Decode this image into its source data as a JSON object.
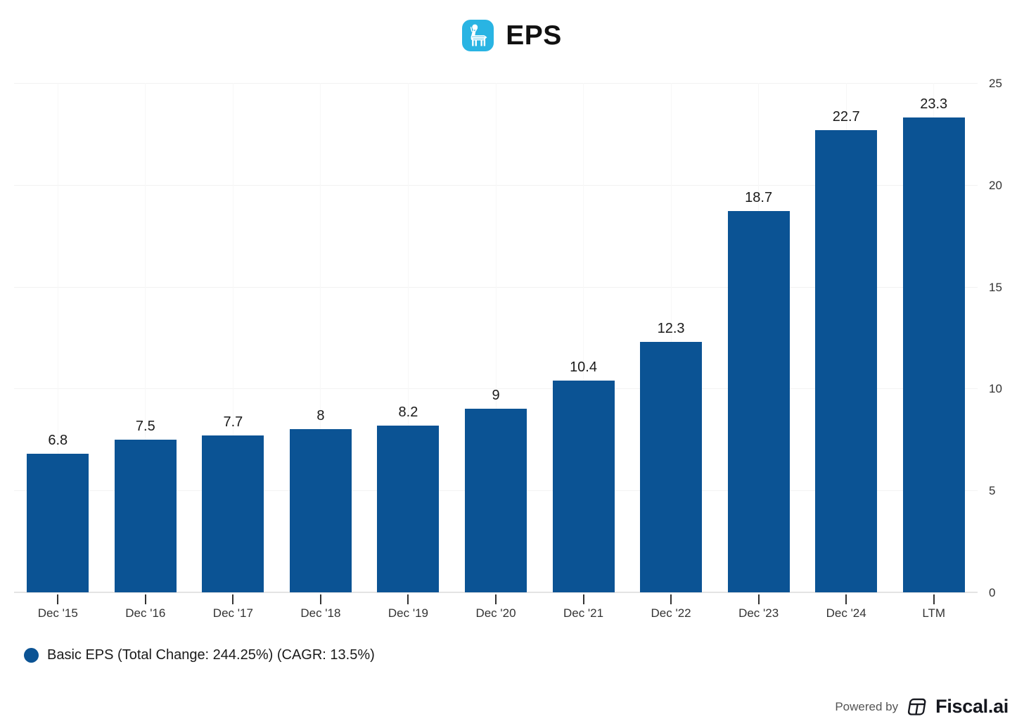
{
  "header": {
    "title": "EPS",
    "icon": "deer-logo-icon"
  },
  "chart_data": {
    "type": "bar",
    "title": "EPS",
    "categories": [
      "Dec '15",
      "Dec '16",
      "Dec '17",
      "Dec '18",
      "Dec '19",
      "Dec '20",
      "Dec '21",
      "Dec '22",
      "Dec '23",
      "Dec '24",
      "LTM"
    ],
    "series": [
      {
        "name": "Basic EPS",
        "values": [
          6.8,
          7.5,
          7.7,
          8,
          8.2,
          9,
          10.4,
          12.3,
          18.7,
          22.7,
          23.3
        ],
        "data_labels": [
          "6.8",
          "7.5",
          "7.7",
          "8",
          "8.2",
          "9",
          "10.4",
          "12.3",
          "18.7",
          "22.7",
          "23.3"
        ],
        "color": "#0b5394"
      }
    ],
    "xlabel": "",
    "ylabel": "",
    "ylim": [
      0,
      25
    ],
    "yticks": [
      0,
      5,
      10,
      15,
      20,
      25
    ],
    "y_axis_position": "right",
    "grid": true,
    "legend_position": "bottom-left"
  },
  "legend": {
    "label": "Basic EPS (Total Change: 244.25%) (CAGR: 13.5%)",
    "marker_color": "#0b5394"
  },
  "footer": {
    "powered_by": "Powered by",
    "brand": "Fiscal.ai"
  },
  "colors": {
    "bar": "#0b5394",
    "icon_bg": "#29b4e3",
    "hgrid": "#f2f2f2",
    "vgrid": "#f7f7f7",
    "baseline": "#e4e4e4",
    "axis_text": "#333333",
    "label_text": "#1a1a1a"
  }
}
